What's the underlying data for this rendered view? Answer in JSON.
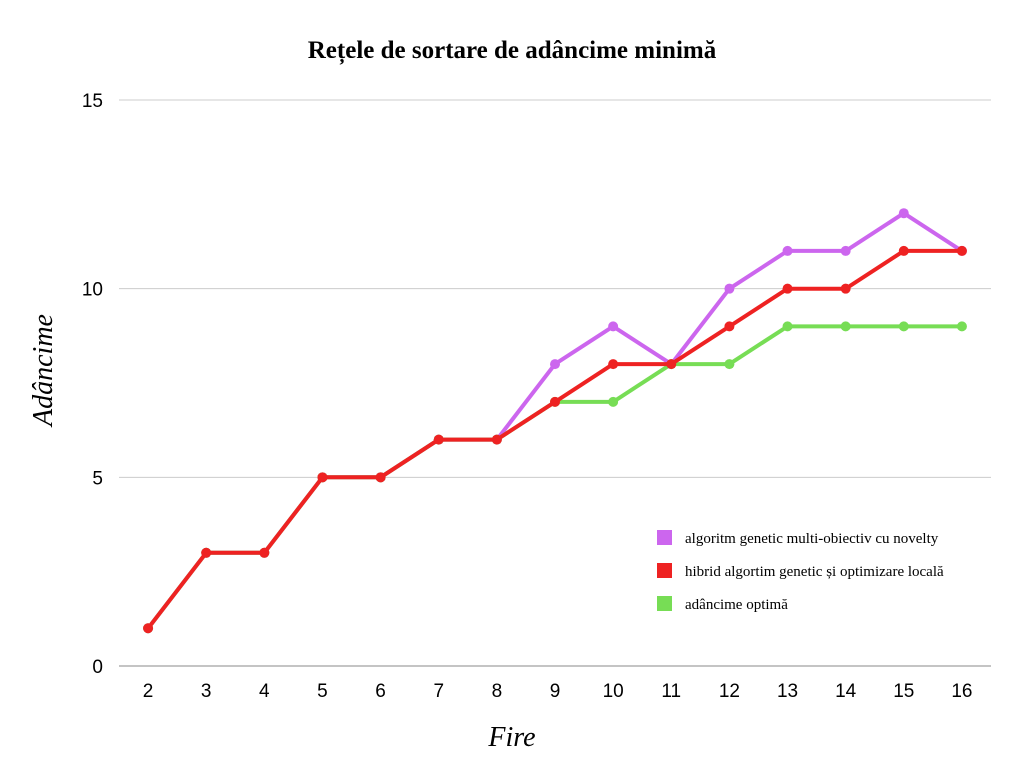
{
  "chart_data": {
    "type": "line",
    "title": "Rețele de sortare de adâncime minimă",
    "xlabel": "Fire",
    "ylabel": "Adâncime",
    "x": [
      2,
      3,
      4,
      5,
      6,
      7,
      8,
      9,
      10,
      11,
      12,
      13,
      14,
      15,
      16
    ],
    "ylim": [
      0,
      15
    ],
    "yticks": [
      0,
      5,
      10,
      15
    ],
    "grid": true,
    "legend_position": "bottom-right",
    "series": [
      {
        "name": "algoritm genetic multi-obiectiv cu novelty",
        "color": "#cc66ee",
        "values": [
          1,
          3,
          3,
          5,
          5,
          6,
          6,
          8,
          9,
          8,
          10,
          11,
          11,
          12,
          11
        ]
      },
      {
        "name": "adâncime optimă",
        "color": "#77dd55",
        "values": [
          1,
          3,
          3,
          5,
          5,
          6,
          6,
          7,
          7,
          8,
          8,
          9,
          9,
          9,
          9
        ]
      },
      {
        "name": "hibrid algortim genetic și optimizare locală",
        "color": "#ee2222",
        "values": [
          1,
          3,
          3,
          5,
          5,
          6,
          6,
          7,
          8,
          8,
          9,
          10,
          10,
          11,
          11
        ]
      }
    ],
    "legend_order": [
      0,
      2,
      1
    ]
  }
}
